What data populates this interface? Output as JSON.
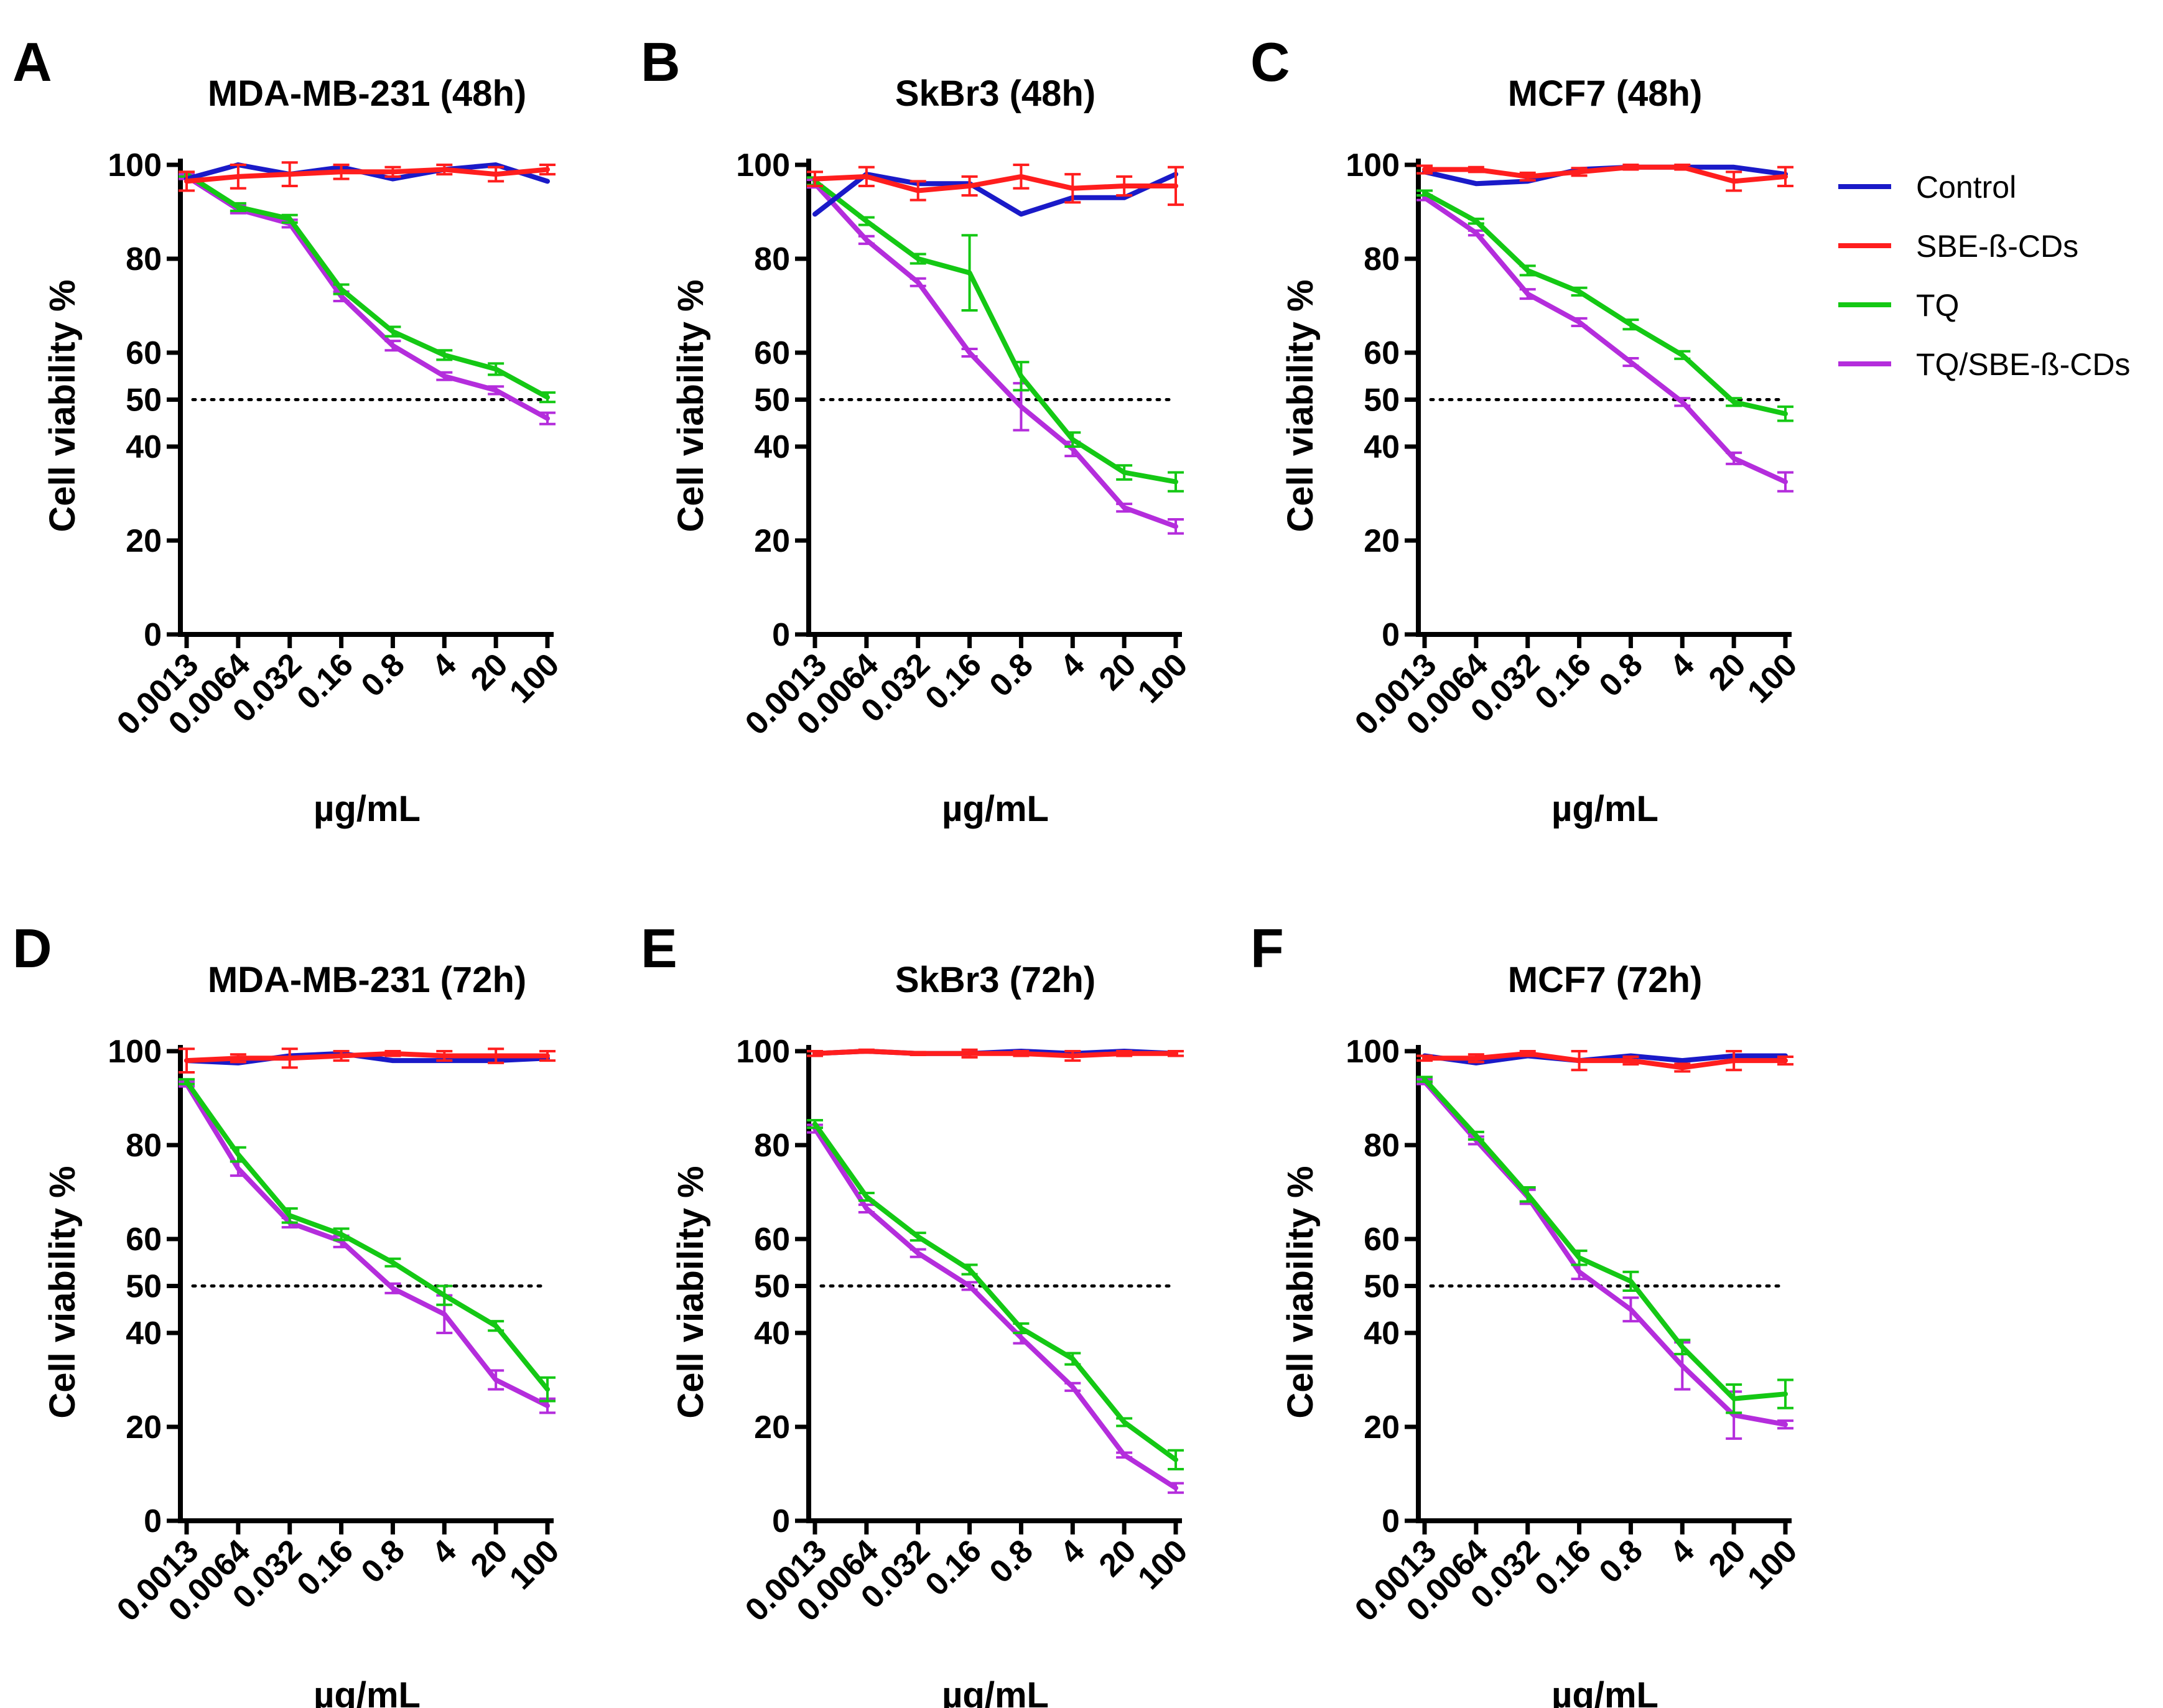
{
  "figure": {
    "legend": [
      {
        "label": "Control",
        "color": "#1a1ac8"
      },
      {
        "label": "SBE-ß-CDs",
        "color": "#ff1e1e"
      },
      {
        "label": " TQ",
        "color": "#14c814"
      },
      {
        "label": "TQ/SBE-ß-CDs",
        "color": "#b42ddc"
      }
    ]
  },
  "chart_data": [
    {
      "type": "line",
      "panel": "A",
      "title": "MDA-MB-231 (48h)",
      "xlabel": "µg/mL",
      "ylabel": "Cell viability %",
      "categories": [
        "0.0013",
        "0.0064",
        "0.032",
        "0.16",
        "0.8",
        "4",
        "20",
        "100"
      ],
      "ylim": [
        0,
        100
      ],
      "yticks": [
        "0",
        "20",
        "40",
        "50",
        "60",
        "80",
        "100"
      ],
      "reference_line": 50,
      "series": [
        {
          "name": "Control",
          "values": [
            97,
            100,
            98,
            99.5,
            97,
            99,
            100,
            96.5
          ],
          "errors": [
            0,
            0,
            0,
            0,
            0,
            0,
            0,
            0
          ]
        },
        {
          "name": "SBE-ß-CDs",
          "values": [
            96.5,
            97.5,
            98,
            98.5,
            98.5,
            99,
            98,
            99
          ],
          "errors": [
            2,
            2.5,
            2.5,
            1.5,
            1,
            1,
            1.5,
            1
          ]
        },
        {
          "name": " TQ",
          "values": [
            98,
            91,
            88.5,
            73.5,
            64.5,
            59.5,
            56.5,
            50.5
          ],
          "errors": [
            0.5,
            0.8,
            0.8,
            1,
            1,
            1,
            1.2,
            1
          ]
        },
        {
          "name": "TQ/SBE-ß-CDs",
          "values": [
            97.5,
            90.5,
            87.5,
            72,
            61.5,
            55,
            52,
            46
          ],
          "errors": [
            0.5,
            0.8,
            0.8,
            1,
            1,
            0.8,
            0.8,
            1.2
          ]
        }
      ]
    },
    {
      "type": "line",
      "panel": "B",
      "title": "SkBr3 (48h)",
      "xlabel": "µg/mL",
      "ylabel": "Cell viability %",
      "categories": [
        "0.0013",
        "0.0064",
        "0.032",
        "0.16",
        "0.8",
        "4",
        "20",
        "100"
      ],
      "ylim": [
        0,
        100
      ],
      "yticks": [
        "0",
        "20",
        "40",
        "50",
        "60",
        "80",
        "100"
      ],
      "reference_line": 50,
      "series": [
        {
          "name": "Control",
          "values": [
            89.5,
            98,
            96,
            96,
            89.5,
            93,
            93,
            98
          ],
          "errors": [
            0,
            0,
            0,
            0,
            0,
            0,
            0,
            0
          ]
        },
        {
          "name": "SBE-ß-CDs",
          "values": [
            97,
            97.5,
            94.5,
            95.5,
            97.5,
            95,
            95.5,
            95.5
          ],
          "errors": [
            1.5,
            2,
            2,
            2,
            2.5,
            3,
            2,
            4
          ]
        },
        {
          "name": " TQ",
          "values": [
            96.5,
            88,
            80,
            77,
            55,
            41.5,
            34.5,
            32.5
          ],
          "errors": [
            0.8,
            0.8,
            1,
            8,
            3,
            1.5,
            1.5,
            2
          ]
        },
        {
          "name": "TQ/SBE-ß-CDs",
          "values": [
            96,
            84,
            75,
            60,
            48.5,
            39.5,
            27,
            23
          ],
          "errors": [
            0.8,
            0.8,
            0.8,
            0.8,
            5,
            1.5,
            0.8,
            1.5
          ]
        }
      ]
    },
    {
      "type": "line",
      "panel": "C",
      "title": "MCF7 (48h)",
      "xlabel": "µg/mL",
      "ylabel": "Cell viability %",
      "categories": [
        "0.0013",
        "0.0064",
        "0.032",
        "0.16",
        "0.8",
        "4",
        "20",
        "100"
      ],
      "ylim": [
        0,
        100
      ],
      "yticks": [
        "0",
        "20",
        "40",
        "50",
        "60",
        "80",
        "100"
      ],
      "reference_line": 50,
      "series": [
        {
          "name": "Control",
          "values": [
            98.5,
            96,
            96.5,
            99,
            99.5,
            99.5,
            99.5,
            98
          ],
          "errors": [
            0,
            0,
            0,
            0,
            0,
            0,
            0,
            0
          ]
        },
        {
          "name": "SBE-ß-CDs",
          "values": [
            99,
            99,
            97.5,
            98.5,
            99.5,
            99.5,
            96.5,
            97.5
          ],
          "errors": [
            0.8,
            0.5,
            0.8,
            0.8,
            0.5,
            0.5,
            2,
            2
          ]
        },
        {
          "name": " TQ",
          "values": [
            94,
            88,
            77.5,
            73,
            66,
            59.5,
            49.5,
            47
          ],
          "errors": [
            0.5,
            0.5,
            1,
            0.8,
            1,
            0.8,
            0.8,
            1.5
          ]
        },
        {
          "name": "TQ/SBE-ß-CDs",
          "values": [
            93,
            85.5,
            72.5,
            66.5,
            58,
            49.5,
            37.5,
            32.5
          ],
          "errors": [
            0.5,
            0.5,
            1,
            0.8,
            0.8,
            0.8,
            1.2,
            2
          ]
        }
      ]
    },
    {
      "type": "line",
      "panel": "D",
      "title": "MDA-MB-231 (72h)",
      "xlabel": "µg/mL",
      "ylabel": "Cell viability %",
      "categories": [
        "0.0013",
        "0.0064",
        "0.032",
        "0.16",
        "0.8",
        "4",
        "20",
        "100"
      ],
      "ylim": [
        0,
        100
      ],
      "yticks": [
        "0",
        "20",
        "40",
        "50",
        "60",
        "80",
        "100"
      ],
      "reference_line": 50,
      "series": [
        {
          "name": "Control",
          "values": [
            98,
            97.5,
            99,
            99.5,
            98,
            98,
            98,
            98.5
          ],
          "errors": [
            0,
            0,
            0,
            0,
            0,
            0,
            0,
            0
          ]
        },
        {
          "name": "SBE-ß-CDs",
          "values": [
            98,
            98.5,
            98.5,
            99,
            99.5,
            99,
            99,
            99
          ],
          "errors": [
            2.5,
            0.8,
            2,
            1,
            0.5,
            1,
            1.5,
            1
          ]
        },
        {
          "name": " TQ",
          "values": [
            93.5,
            78,
            65,
            61,
            55,
            48,
            41.5,
            28
          ],
          "errors": [
            0.5,
            1.5,
            1.5,
            1.2,
            0.8,
            2,
            1,
            2.5
          ]
        },
        {
          "name": "TQ/SBE-ß-CDs",
          "values": [
            93,
            75,
            63.5,
            59.5,
            49.5,
            44,
            30,
            24.5
          ],
          "errors": [
            0.5,
            1.5,
            1,
            1.2,
            1,
            4,
            2,
            1.5
          ]
        }
      ]
    },
    {
      "type": "line",
      "panel": "E",
      "title": "SkBr3 (72h)",
      "xlabel": "µg/mL",
      "ylabel": "Cell viability %",
      "categories": [
        "0.0013",
        "0.0064",
        "0.032",
        "0.16",
        "0.8",
        "4",
        "20",
        "100"
      ],
      "ylim": [
        0,
        100
      ],
      "yticks": [
        "0",
        "20",
        "40",
        "50",
        "60",
        "80",
        "100"
      ],
      "reference_line": 50,
      "series": [
        {
          "name": "Control",
          "values": [
            99.5,
            100,
            99.5,
            99.5,
            100,
            99.5,
            100,
            99.5
          ],
          "errors": [
            0,
            0,
            0,
            0,
            0,
            0,
            0,
            0
          ]
        },
        {
          "name": "SBE-ß-CDs",
          "values": [
            99.5,
            100,
            99.5,
            99.5,
            99.5,
            99,
            99.5,
            99.5
          ],
          "errors": [
            0.5,
            0.3,
            0.3,
            0.8,
            0.5,
            1,
            0.5,
            0.5
          ]
        },
        {
          "name": " TQ",
          "values": [
            84.5,
            69,
            60.5,
            53.5,
            41,
            34.5,
            21,
            13
          ],
          "errors": [
            0.8,
            0.8,
            0.8,
            1,
            1,
            1.2,
            0.8,
            2
          ]
        },
        {
          "name": "TQ/SBE-ß-CDs",
          "values": [
            83.5,
            66.5,
            57,
            50,
            39,
            28.5,
            14,
            7
          ],
          "errors": [
            0.8,
            0.8,
            0.8,
            0.8,
            1.2,
            0.8,
            0.5,
            1
          ]
        }
      ]
    },
    {
      "type": "line",
      "panel": "F",
      "title": "MCF7 (72h)",
      "xlabel": "µg/mL",
      "ylabel": "Cell viability %",
      "categories": [
        "0.0013",
        "0.0064",
        "0.032",
        "0.16",
        "0.8",
        "4",
        "20",
        "100"
      ],
      "ylim": [
        0,
        100
      ],
      "yticks": [
        "0",
        "20",
        "40",
        "50",
        "60",
        "80",
        "100"
      ],
      "reference_line": 50,
      "series": [
        {
          "name": "Control",
          "values": [
            99,
            97.5,
            99,
            98,
            99,
            98,
            99,
            99
          ],
          "errors": [
            0,
            0,
            0,
            0,
            0,
            0,
            0,
            0
          ]
        },
        {
          "name": "SBE-ß-CDs",
          "values": [
            98.5,
            98.5,
            99.5,
            98,
            98,
            96.5,
            98,
            98
          ],
          "errors": [
            0.5,
            0.8,
            0.5,
            2,
            0.8,
            0.8,
            2,
            0.8
          ]
        },
        {
          "name": " TQ",
          "values": [
            94,
            82,
            69.5,
            56,
            51,
            37,
            26,
            27
          ],
          "errors": [
            0.5,
            0.8,
            1.5,
            1.5,
            2,
            1.5,
            3,
            3
          ]
        },
        {
          "name": "TQ/SBE-ß-CDs",
          "values": [
            93.5,
            81,
            69,
            53,
            45,
            33,
            22.5,
            20.5
          ],
          "errors": [
            0.5,
            0.8,
            1.5,
            1.5,
            2.5,
            5,
            5,
            0.8
          ]
        }
      ]
    }
  ]
}
